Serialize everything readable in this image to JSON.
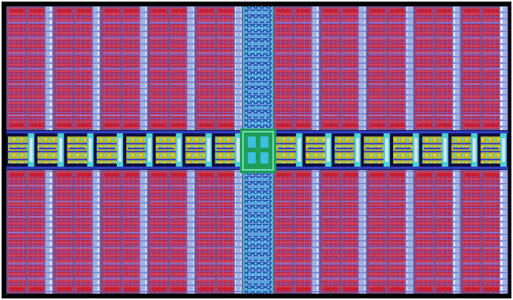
{
  "layout": {
    "memory_quadrants": [
      {
        "id": "top-left",
        "row": "top",
        "side": "left"
      },
      {
        "id": "top-right",
        "row": "top",
        "side": "right"
      },
      {
        "id": "bottom-left",
        "row": "bottom",
        "side": "left"
      },
      {
        "id": "bottom-right",
        "row": "bottom",
        "side": "right"
      }
    ],
    "columns_per_quadrant": 5,
    "cell_row_groups": 8,
    "decoder_blocks_per_side": 8,
    "colors": {
      "background": "#ffffff",
      "frame": "#000000",
      "substrate": "#7c4f86",
      "metal_red": "#c81e32",
      "metal_red_light": "#e0506a",
      "metal_blue": "#7e8ce8",
      "strap_light": "#d8e2f2",
      "decoder_yellow": "#c8c628",
      "decoder_cyan": "#4ad2d8",
      "decoder_blue": "#3040c8",
      "spine_blue": "#3c6cc8",
      "spine_teal": "#3ec0b4",
      "core_green": "#1e9e5a"
    }
  }
}
